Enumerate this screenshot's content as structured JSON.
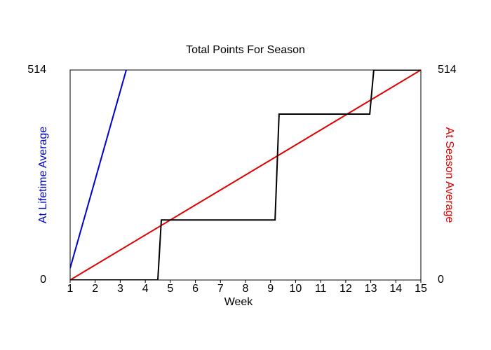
{
  "chart_data": {
    "type": "line",
    "title": "Total Points For Season",
    "xlabel": "Week",
    "xlim": [
      1,
      15
    ],
    "xticks": [
      1,
      2,
      3,
      4,
      5,
      6,
      7,
      8,
      9,
      10,
      11,
      12,
      13,
      14,
      15
    ],
    "ylim": [
      0,
      514
    ],
    "yticks": [
      0,
      514
    ],
    "y2lim": [
      0,
      514
    ],
    "y2ticks": [
      0,
      514
    ],
    "series": [
      {
        "name": "At Lifetime Average",
        "color": "#0000cc",
        "x": [
          1,
          3.24
        ],
        "values": [
          29,
          514
        ]
      },
      {
        "name": "At Season Average",
        "color": "#e00000",
        "axis": "y2",
        "x": [
          1,
          15
        ],
        "values": [
          0,
          514
        ]
      },
      {
        "color": "#000000",
        "x": [
          1,
          4.5,
          4.64,
          9.18,
          9.34,
          12.96,
          13.12,
          15
        ],
        "values": [
          0,
          0,
          147,
          147,
          406,
          406,
          514,
          514
        ]
      }
    ]
  }
}
